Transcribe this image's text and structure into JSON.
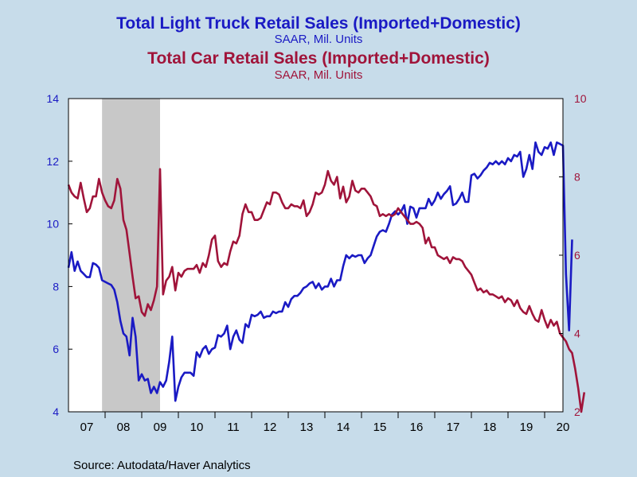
{
  "chart_data": {
    "type": "line",
    "titles": [
      {
        "title": "Total Light Truck Retail Sales (Imported+Domestic)",
        "subtitle": "SAAR, Mil. Units"
      },
      {
        "title": "Total Car Retail Sales (Imported+Domestic)",
        "subtitle": "SAAR, Mil. Units"
      }
    ],
    "x_tick_labels": [
      "07",
      "08",
      "09",
      "10",
      "11",
      "12",
      "13",
      "14",
      "15",
      "16",
      "17",
      "18",
      "19",
      "20"
    ],
    "left_axis": {
      "ylim": [
        4,
        14
      ],
      "ticks": [
        "4",
        "6",
        "8",
        "10",
        "12",
        "14"
      ]
    },
    "right_axis": {
      "ylim": [
        2,
        10
      ],
      "ticks": [
        "2",
        "4",
        "6",
        "8",
        "10"
      ]
    },
    "recession_shading": {
      "start": "2007-12",
      "end": "2009-06"
    },
    "colors": {
      "truck": "#1A1AC4",
      "car": "#A0143A",
      "shade": "#C8C8C8",
      "background": "#C7DCEA",
      "plot": "#FFFFFF"
    },
    "series": [
      {
        "axis": "left",
        "start": "2007-01",
        "values": [
          8.6,
          9.1,
          8.5,
          8.8,
          8.5,
          8.4,
          8.3,
          8.3,
          8.75,
          8.7,
          8.6,
          8.2,
          8.15,
          8.1,
          8.05,
          7.9,
          7.5,
          6.9,
          6.5,
          6.4,
          5.8,
          7.0,
          6.4,
          5.0,
          5.2,
          5.0,
          5.05,
          4.6,
          4.8,
          4.6,
          4.95,
          4.8,
          5.0,
          5.6,
          6.4,
          4.35,
          4.8,
          5.1,
          5.25,
          5.25,
          5.25,
          5.15,
          5.9,
          5.75,
          6.0,
          6.1,
          5.85,
          6.0,
          6.05,
          6.45,
          6.4,
          6.5,
          6.75,
          6.0,
          6.4,
          6.6,
          6.3,
          6.2,
          6.8,
          6.7,
          7.1,
          7.05,
          7.1,
          7.2,
          7.0,
          7.05,
          7.05,
          7.2,
          7.15,
          7.2,
          7.2,
          7.5,
          7.35,
          7.6,
          7.7,
          7.7,
          7.8,
          7.95,
          8.0,
          8.1,
          8.15,
          7.95,
          8.1,
          7.9,
          8.0,
          8.0,
          8.25,
          8.0,
          8.2,
          8.2,
          8.65,
          9.0,
          8.9,
          9.0,
          8.95,
          9.0,
          9.0,
          8.75,
          8.9,
          9.0,
          9.3,
          9.6,
          9.75,
          9.8,
          9.75,
          10.0,
          10.3,
          10.4,
          10.3,
          10.4,
          10.6,
          10.0,
          10.55,
          10.5,
          10.2,
          10.5,
          10.5,
          10.5,
          10.8,
          10.6,
          10.75,
          11.0,
          10.8,
          10.95,
          11.05,
          11.2,
          10.6,
          10.65,
          10.8,
          11.0,
          10.7,
          10.7,
          11.55,
          11.6,
          11.45,
          11.55,
          11.7,
          11.8,
          11.95,
          11.9,
          12.0,
          11.9,
          12.0,
          11.9,
          12.1,
          12.0,
          12.2,
          12.15,
          12.3,
          11.5,
          11.75,
          12.2,
          11.75,
          12.6,
          12.3,
          12.2,
          12.45,
          12.4,
          12.6,
          12.2,
          12.6,
          12.55,
          12.5,
          8.4,
          6.6,
          9.5
        ]
      },
      {
        "axis": "right",
        "start": "2007-01",
        "values": [
          7.8,
          7.6,
          7.5,
          7.45,
          7.85,
          7.45,
          7.1,
          7.2,
          7.5,
          7.5,
          7.95,
          7.6,
          7.4,
          7.25,
          7.2,
          7.4,
          7.95,
          7.7,
          6.9,
          6.65,
          6.05,
          5.45,
          4.9,
          4.95,
          4.55,
          4.45,
          4.75,
          4.6,
          4.85,
          5.2,
          8.2,
          5.0,
          5.35,
          5.45,
          5.7,
          5.1,
          5.55,
          5.45,
          5.6,
          5.65,
          5.65,
          5.65,
          5.75,
          5.55,
          5.8,
          5.7,
          6.0,
          6.4,
          6.5,
          5.85,
          5.7,
          5.8,
          5.75,
          6.1,
          6.35,
          6.3,
          6.5,
          7.05,
          7.3,
          7.1,
          7.1,
          6.9,
          6.9,
          6.95,
          7.15,
          7.35,
          7.3,
          7.6,
          7.6,
          7.55,
          7.35,
          7.2,
          7.2,
          7.3,
          7.25,
          7.25,
          7.2,
          7.4,
          7.0,
          7.1,
          7.3,
          7.6,
          7.55,
          7.6,
          7.8,
          8.15,
          7.9,
          7.8,
          8.0,
          7.45,
          7.75,
          7.35,
          7.5,
          7.9,
          7.65,
          7.6,
          7.7,
          7.7,
          7.6,
          7.5,
          7.3,
          7.25,
          7.0,
          7.05,
          7.0,
          7.05,
          7.0,
          7.05,
          7.2,
          7.1,
          7.0,
          6.9,
          6.8,
          6.8,
          6.85,
          6.8,
          6.7,
          6.3,
          6.45,
          6.2,
          6.2,
          6.0,
          5.95,
          5.9,
          5.95,
          5.8,
          5.95,
          5.9,
          5.9,
          5.85,
          5.7,
          5.6,
          5.5,
          5.3,
          5.1,
          5.15,
          5.05,
          5.1,
          5.0,
          5.0,
          4.95,
          4.9,
          4.95,
          4.8,
          4.9,
          4.85,
          4.7,
          4.85,
          4.65,
          4.55,
          4.5,
          4.7,
          4.5,
          4.35,
          4.3,
          4.6,
          4.35,
          4.15,
          4.35,
          4.2,
          4.3,
          4.0,
          3.9,
          3.8,
          3.6,
          3.5,
          3.1,
          2.6,
          2.0,
          2.5
        ]
      }
    ]
  },
  "source": "Source:  Autodata/Haver Analytics"
}
